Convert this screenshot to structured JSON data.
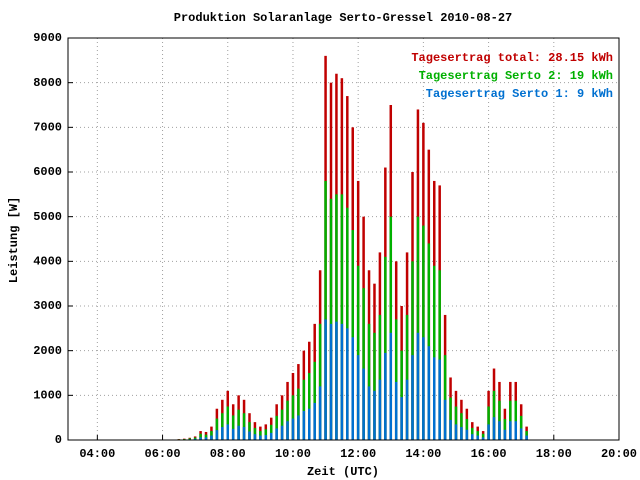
{
  "chart_data": {
    "type": "bar",
    "overlay": true,
    "title": "Produktion Solaranlage Serto-Gressel 2010-08-27",
    "xlabel": "Zeit (UTC)",
    "ylabel": "Leistung [W]",
    "legend": "upper right",
    "grid": true,
    "xlim": [
      186,
      1200
    ],
    "xticks": [
      {
        "value": 240,
        "label": "04:00"
      },
      {
        "value": 360,
        "label": "06:00"
      },
      {
        "value": 480,
        "label": "08:00"
      },
      {
        "value": 600,
        "label": "10:00"
      },
      {
        "value": 720,
        "label": "12:00"
      },
      {
        "value": 840,
        "label": "14:00"
      },
      {
        "value": 960,
        "label": "16:00"
      },
      {
        "value": 1080,
        "label": "18:00"
      },
      {
        "value": 1200,
        "label": "20:00"
      }
    ],
    "ylim": [
      0,
      9000
    ],
    "yticks": [
      0,
      1000,
      2000,
      3000,
      4000,
      5000,
      6000,
      7000,
      8000,
      9000
    ],
    "x": [
      390,
      400,
      410,
      420,
      430,
      440,
      450,
      460,
      470,
      480,
      490,
      500,
      510,
      520,
      530,
      540,
      550,
      560,
      570,
      580,
      590,
      600,
      610,
      620,
      630,
      640,
      650,
      660,
      670,
      680,
      690,
      700,
      710,
      720,
      730,
      740,
      750,
      760,
      770,
      780,
      790,
      800,
      810,
      820,
      830,
      840,
      850,
      860,
      870,
      880,
      890,
      900,
      910,
      920,
      930,
      940,
      950,
      960,
      970,
      980,
      990,
      1000,
      1010,
      1020,
      1030
    ],
    "series": [
      {
        "name": "Tagesertrag total: 28.15 kWh",
        "color": "#c00000",
        "values": [
          20,
          30,
          50,
          80,
          200,
          180,
          300,
          700,
          900,
          1100,
          800,
          1000,
          900,
          600,
          400,
          300,
          350,
          500,
          800,
          1000,
          1300,
          1500,
          1700,
          2000,
          2200,
          2600,
          3800,
          8600,
          8000,
          8200,
          8100,
          7700,
          7000,
          5800,
          5000,
          3800,
          3500,
          4200,
          6100,
          7500,
          4000,
          3000,
          4200,
          6000,
          7400,
          7100,
          6500,
          5800,
          5700,
          2800,
          1400,
          1100,
          900,
          700,
          400,
          300,
          200,
          1100,
          1600,
          1300,
          700,
          1300,
          1300,
          800,
          300
        ]
      },
      {
        "name": "Tagesertrag Serto 2: 19 kWh",
        "color": "#00b000",
        "values": [
          15,
          20,
          35,
          55,
          140,
          120,
          200,
          480,
          600,
          750,
          550,
          680,
          600,
          400,
          270,
          200,
          240,
          340,
          540,
          680,
          880,
          1000,
          1150,
          1350,
          1500,
          1750,
          2600,
          5800,
          5400,
          5500,
          5500,
          5200,
          4700,
          3900,
          3400,
          2600,
          2400,
          2800,
          4100,
          5000,
          2700,
          2000,
          2800,
          4000,
          5000,
          4800,
          4400,
          3900,
          3800,
          1900,
          950,
          750,
          600,
          470,
          270,
          200,
          140,
          750,
          1100,
          880,
          470,
          880,
          880,
          540,
          200
        ]
      },
      {
        "name": "Tagesertrag Serto 1: 9 kWh",
        "color": "#0070d0",
        "values": [
          5,
          10,
          15,
          25,
          60,
          60,
          100,
          220,
          290,
          350,
          250,
          320,
          290,
          190,
          130,
          100,
          110,
          160,
          260,
          320,
          420,
          480,
          550,
          650,
          700,
          830,
          1200,
          2700,
          2600,
          2650,
          2600,
          2500,
          2300,
          1900,
          1600,
          1200,
          1100,
          1350,
          1950,
          2400,
          1300,
          960,
          1350,
          1900,
          2400,
          2300,
          2100,
          1850,
          1800,
          900,
          450,
          350,
          290,
          230,
          130,
          100,
          60,
          350,
          510,
          420,
          230,
          420,
          420,
          260,
          100
        ]
      }
    ]
  }
}
